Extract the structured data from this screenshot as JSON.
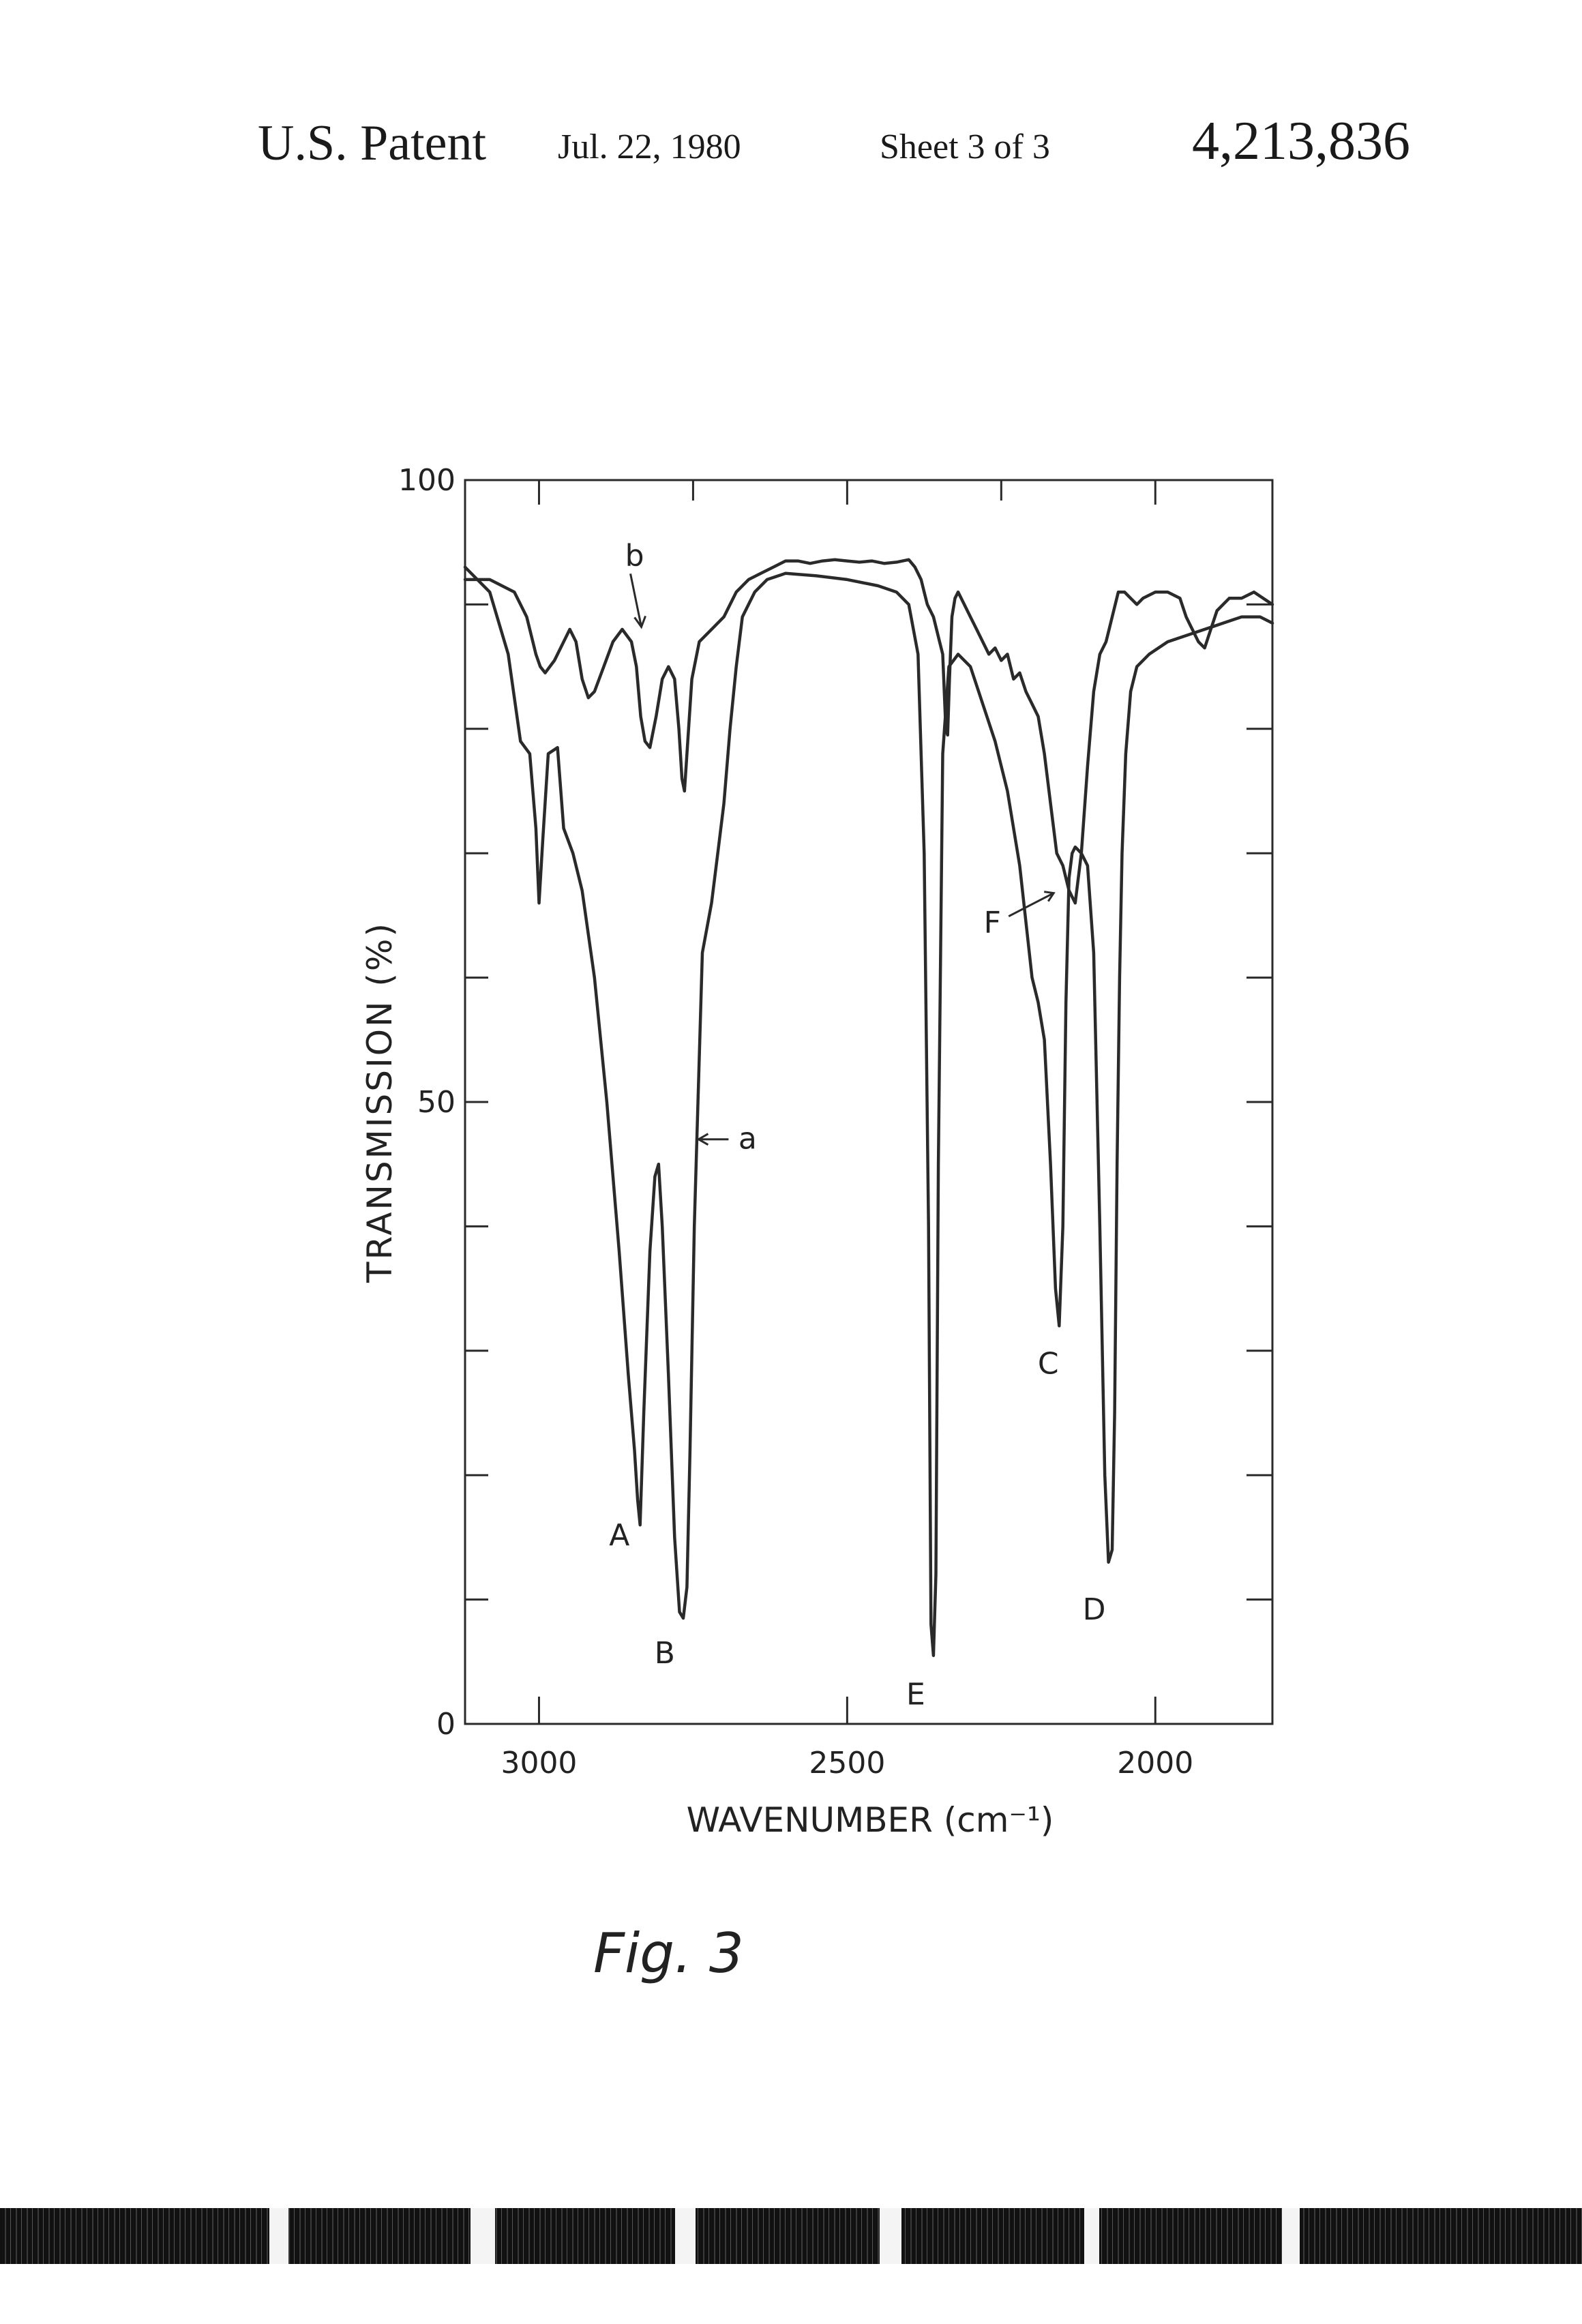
{
  "header": {
    "left": "U.S. Patent",
    "date": "Jul. 22, 1980",
    "sheet": "Sheet 3 of 3",
    "patent_number": "4,213,836"
  },
  "figure_caption": "Fig. 3",
  "chart_data": {
    "type": "line",
    "title": "",
    "xlabel": "WAVENUMBER (cm⁻¹)",
    "ylabel": "TRANSMISSION (%)",
    "xlim": [
      3120,
      1810
    ],
    "ylim": [
      0,
      100
    ],
    "x_reversed": true,
    "x_ticks": [
      3000,
      2500,
      2000
    ],
    "x_tick_labels": [
      "3000",
      "2500",
      "2000"
    ],
    "y_ticks": [
      0,
      50,
      100
    ],
    "y_tick_labels": [
      "0",
      "50",
      "100"
    ],
    "grid": false,
    "colors": {
      "line": "#2a2a2a",
      "text": "#222222"
    },
    "series": [
      {
        "name": "a",
        "x": [
          3120,
          3080,
          3050,
          3030,
          3015,
          3005,
          3000,
          2994,
          2985,
          2970,
          2960,
          2945,
          2930,
          2910,
          2890,
          2870,
          2855,
          2845,
          2840,
          2836,
          2830,
          2820,
          2812,
          2806,
          2800,
          2790,
          2780,
          2772,
          2766,
          2760,
          2755,
          2748,
          2735,
          2720,
          2710,
          2700,
          2690,
          2680,
          2670,
          2650,
          2630,
          2600,
          2550,
          2500,
          2450,
          2420,
          2400,
          2385,
          2375,
          2368,
          2364,
          2360,
          2356,
          2352,
          2345,
          2335,
          2320,
          2300,
          2280,
          2260,
          2240,
          2220,
          2200,
          2190,
          2180,
          2170,
          2162,
          2156,
          2150,
          2145,
          2140,
          2135,
          2130,
          2120,
          2110,
          2100,
          2090,
          2082,
          2076,
          2070,
          2066,
          2062,
          2058,
          2054,
          2048,
          2040,
          2030,
          2010,
          1980,
          1950,
          1920,
          1890,
          1860,
          1830,
          1810
        ],
        "y": [
          93,
          91,
          86,
          79,
          78,
          72,
          66,
          71,
          78,
          78.5,
          72,
          70,
          67,
          60,
          50,
          38,
          28,
          22,
          18,
          16,
          25,
          38,
          44,
          45,
          40,
          28,
          15,
          9,
          8.5,
          11,
          22,
          40,
          62,
          66,
          70,
          74,
          80,
          85,
          89,
          91,
          92,
          92.5,
          92.3,
          92,
          91.5,
          91,
          90,
          86,
          70,
          40,
          8,
          5.5,
          12,
          45,
          78,
          85,
          86,
          85,
          82,
          79,
          75,
          69,
          60,
          58,
          55,
          45,
          35,
          32,
          40,
          58,
          68,
          70,
          70.5,
          70,
          69,
          62,
          40,
          20,
          13,
          14,
          25,
          45,
          60,
          70,
          78,
          83,
          85,
          86,
          87,
          87.5,
          88,
          88.5,
          89,
          89,
          88.5
        ]
      },
      {
        "name": "b",
        "x": [
          3120,
          3080,
          3040,
          3020,
          3010,
          3005,
          2998,
          2990,
          2975,
          2960,
          2950,
          2940,
          2930,
          2920,
          2910,
          2895,
          2880,
          2865,
          2850,
          2842,
          2835,
          2828,
          2820,
          2810,
          2800,
          2790,
          2780,
          2773,
          2768,
          2764,
          2760,
          2752,
          2740,
          2720,
          2700,
          2680,
          2660,
          2640,
          2620,
          2600,
          2580,
          2560,
          2540,
          2520,
          2500,
          2480,
          2460,
          2440,
          2420,
          2400,
          2390,
          2380,
          2375,
          2370,
          2360,
          2350,
          2345,
          2340,
          2337,
          2334,
          2330,
          2325,
          2320,
          2310,
          2300,
          2290,
          2280,
          2270,
          2260,
          2250,
          2240,
          2230,
          2220,
          2210,
          2200,
          2190,
          2180,
          2170,
          2160,
          2150,
          2145,
          2140,
          2130,
          2120,
          2110,
          2100,
          2090,
          2080,
          2075,
          2070,
          2065,
          2060,
          2055,
          2050,
          2040,
          2030,
          2020,
          2000,
          1980,
          1960,
          1950,
          1940,
          1930,
          1920,
          1910,
          1900,
          1880,
          1860,
          1840,
          1810
        ],
        "y": [
          92,
          92,
          91,
          89,
          87,
          86,
          85,
          84.5,
          85.5,
          87,
          88,
          87,
          84,
          82.5,
          83,
          85,
          87,
          88,
          87,
          85,
          81,
          79,
          78.5,
          81,
          84,
          85,
          84,
          80,
          76,
          75,
          78,
          84,
          87,
          88,
          89,
          91,
          92,
          92.5,
          93,
          93.5,
          93.5,
          93.3,
          93.5,
          93.6,
          93.5,
          93.4,
          93.5,
          93.3,
          93.4,
          93.6,
          93,
          92,
          91,
          90,
          89,
          87,
          86,
          80,
          79.5,
          84,
          89,
          90.5,
          91,
          90,
          89,
          88,
          87,
          86,
          86.5,
          85.5,
          86,
          84,
          84.5,
          83,
          82,
          81,
          78,
          74,
          70,
          69,
          68,
          67,
          66,
          70,
          77,
          83,
          86,
          87,
          88,
          89,
          90,
          91,
          91,
          91,
          90.5,
          90,
          90.5,
          91,
          91,
          90.5,
          89,
          88,
          87,
          86.5,
          88,
          89.5,
          90.5,
          90.5,
          91,
          90
        ]
      }
    ],
    "annotations": [
      {
        "text": "A",
        "x": 2832,
        "y": 16
      },
      {
        "text": "B",
        "x": 2765,
        "y": 8.5
      },
      {
        "text": "E",
        "x": 2360,
        "y": 5.5
      },
      {
        "text": "C",
        "x": 2156,
        "y": 32
      },
      {
        "text": "D",
        "x": 2066,
        "y": 13
      },
      {
        "text": "F",
        "x": 2145,
        "y": 68
      },
      {
        "text": "a",
        "x": 2750,
        "y": 47
      },
      {
        "text": "b",
        "x": 2845,
        "y": 86
      }
    ]
  }
}
